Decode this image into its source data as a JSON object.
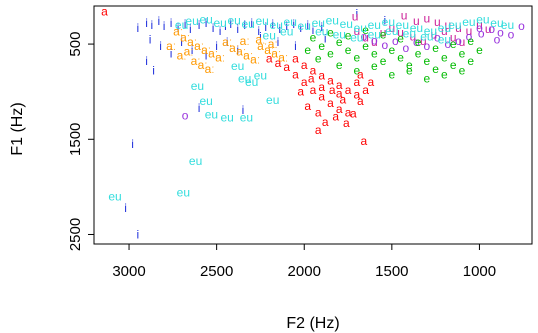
{
  "chart_data": {
    "type": "scatter",
    "title": "",
    "xlabel": "F2 (Hz)",
    "ylabel": "F1 (Hz)",
    "x_reversed": true,
    "y_reversed": true,
    "xlim": [
      3200,
      700
    ],
    "ylim": [
      100,
      2600
    ],
    "x_ticks": [
      3000,
      2500,
      2000,
      1500,
      1000
    ],
    "y_ticks": [
      500,
      1500,
      2500
    ],
    "grid": false,
    "legend": "none",
    "series": [
      {
        "name": "i",
        "color": "#2233dd",
        "points": [
          [
            2950,
            330
          ],
          [
            2900,
            280
          ],
          [
            2870,
            300
          ],
          [
            2830,
            260
          ],
          [
            2800,
            310
          ],
          [
            2760,
            280
          ],
          [
            2720,
            330
          ],
          [
            2680,
            290
          ],
          [
            2650,
            340
          ],
          [
            2600,
            300
          ],
          [
            2560,
            280
          ],
          [
            2520,
            330
          ],
          [
            2480,
            360
          ],
          [
            2450,
            310
          ],
          [
            2420,
            290
          ],
          [
            2380,
            340
          ],
          [
            2340,
            300
          ],
          [
            2300,
            280
          ],
          [
            2260,
            360
          ],
          [
            2220,
            320
          ],
          [
            2180,
            290
          ],
          [
            2140,
            340
          ],
          [
            2100,
            310
          ],
          [
            2060,
            290
          ],
          [
            2020,
            330
          ],
          [
            1980,
            300
          ],
          [
            1950,
            350
          ],
          [
            1900,
            320
          ],
          [
            2880,
            450
          ],
          [
            2820,
            520
          ],
          [
            2760,
            600
          ],
          [
            2700,
            480
          ],
          [
            2640,
            560
          ],
          [
            2560,
            620
          ],
          [
            2500,
            520
          ],
          [
            2440,
            480
          ],
          [
            2380,
            560
          ],
          [
            2900,
            680
          ],
          [
            2860,
            780
          ],
          [
            2600,
            1170
          ],
          [
            2350,
            1190
          ],
          [
            2980,
            1550
          ],
          [
            3020,
            2220
          ],
          [
            2950,
            2500
          ],
          [
            1540,
            250
          ],
          [
            1700,
            180
          ],
          [
            2250,
            420
          ],
          [
            2150,
            480
          ],
          [
            2050,
            520
          ],
          [
            1880,
            440
          ]
        ]
      },
      {
        "name": "u",
        "color": "#cc2299",
        "points": [
          [
            1710,
            210
          ],
          [
            1430,
            200
          ],
          [
            1360,
            260
          ],
          [
            1300,
            230
          ],
          [
            1240,
            270
          ],
          [
            1180,
            300
          ],
          [
            1120,
            330
          ],
          [
            1060,
            360
          ],
          [
            1000,
            300
          ],
          [
            950,
            340
          ],
          [
            1500,
            330
          ],
          [
            1450,
            380
          ],
          [
            1380,
            420
          ],
          [
            1320,
            470
          ],
          [
            1260,
            400
          ],
          [
            1200,
            360
          ],
          [
            1150,
            430
          ],
          [
            1100,
            480
          ],
          [
            1650,
            430
          ],
          [
            1600,
            480
          ],
          [
            1550,
            380
          ],
          [
            1700,
            360
          ]
        ]
      },
      {
        "name": "o",
        "color": "#9933dd",
        "points": [
          [
            2680,
            1250
          ],
          [
            1000,
            330
          ],
          [
            930,
            340
          ],
          [
            880,
            380
          ],
          [
            820,
            400
          ],
          [
            760,
            310
          ],
          [
            1060,
            420
          ],
          [
            1120,
            470
          ],
          [
            1180,
            500
          ],
          [
            1240,
            430
          ],
          [
            1300,
            520
          ],
          [
            1360,
            480
          ],
          [
            1420,
            540
          ],
          [
            1480,
            470
          ],
          [
            1540,
            510
          ],
          [
            1600,
            460
          ],
          [
            1660,
            420
          ],
          [
            990,
            390
          ],
          [
            900,
            450
          ]
        ]
      },
      {
        "name": "e",
        "color": "#00bb00",
        "points": [
          [
            1950,
            430
          ],
          [
            1900,
            520
          ],
          [
            1850,
            600
          ],
          [
            1800,
            480
          ],
          [
            1750,
            560
          ],
          [
            1700,
            640
          ],
          [
            1650,
            520
          ],
          [
            1600,
            600
          ],
          [
            1550,
            680
          ],
          [
            1500,
            560
          ],
          [
            1450,
            640
          ],
          [
            1400,
            720
          ],
          [
            1350,
            600
          ],
          [
            1300,
            680
          ],
          [
            1250,
            760
          ],
          [
            1200,
            640
          ],
          [
            1150,
            720
          ],
          [
            1100,
            600
          ],
          [
            1050,
            680
          ],
          [
            1000,
            560
          ],
          [
            1800,
            720
          ],
          [
            1700,
            780
          ],
          [
            1600,
            730
          ],
          [
            1500,
            820
          ],
          [
            1400,
            780
          ],
          [
            1300,
            860
          ],
          [
            1200,
            820
          ],
          [
            1100,
            780
          ],
          [
            1850,
            380
          ],
          [
            1750,
            410
          ],
          [
            1650,
            350
          ],
          [
            1550,
            400
          ],
          [
            1450,
            440
          ],
          [
            1350,
            480
          ],
          [
            1250,
            540
          ],
          [
            1150,
            500
          ],
          [
            1050,
            470
          ],
          [
            1920,
            650
          ],
          [
            1980,
            560
          ]
        ]
      },
      {
        "name": "a",
        "color": "#ff0000",
        "points": [
          [
            3140,
            160
          ],
          [
            2050,
            650
          ],
          [
            2000,
            720
          ],
          [
            1950,
            780
          ],
          [
            1900,
            830
          ],
          [
            1850,
            880
          ],
          [
            1800,
            930
          ],
          [
            1750,
            980
          ],
          [
            1700,
            1030
          ],
          [
            2000,
            900
          ],
          [
            1950,
            980
          ],
          [
            1900,
            1050
          ],
          [
            1850,
            1120
          ],
          [
            1800,
            1180
          ],
          [
            1750,
            1220
          ],
          [
            2050,
            820
          ],
          [
            2100,
            740
          ],
          [
            1980,
            1150
          ],
          [
            1920,
            1220
          ],
          [
            1880,
            1320
          ],
          [
            1820,
            1260
          ],
          [
            1760,
            1330
          ],
          [
            1720,
            1230
          ],
          [
            1680,
            1100
          ],
          [
            1650,
            980
          ],
          [
            1700,
            900
          ],
          [
            1800,
            1020
          ],
          [
            1900,
            950
          ],
          [
            2150,
            700
          ],
          [
            2200,
            650
          ],
          [
            1920,
            1400
          ],
          [
            1660,
            1520
          ],
          [
            1780,
            1080
          ],
          [
            1840,
            980
          ],
          [
            1960,
            860
          ],
          [
            2020,
            1000
          ],
          [
            1680,
            820
          ],
          [
            1620,
            900
          ]
        ]
      },
      {
        "name": "aː",
        "color": "#ff9900",
        "points": [
          [
            2720,
            370
          ],
          [
            2680,
            430
          ],
          [
            2640,
            480
          ],
          [
            2600,
            520
          ],
          [
            2560,
            560
          ],
          [
            2520,
            600
          ],
          [
            2480,
            640
          ],
          [
            2440,
            480
          ],
          [
            2400,
            540
          ],
          [
            2360,
            580
          ],
          [
            2320,
            620
          ],
          [
            2280,
            660
          ],
          [
            2240,
            520
          ],
          [
            2200,
            560
          ],
          [
            2160,
            600
          ],
          [
            2120,
            640
          ],
          [
            2620,
            680
          ],
          [
            2580,
            720
          ],
          [
            2540,
            760
          ],
          [
            2660,
            580
          ],
          [
            2700,
            620
          ],
          [
            2760,
            520
          ],
          [
            2340,
            470
          ],
          [
            2250,
            450
          ],
          [
            2180,
            500
          ]
        ]
      },
      {
        "name": "eu",
        "color": "#33dddd",
        "points": [
          [
            3080,
            2100
          ],
          [
            2690,
            2060
          ],
          [
            2610,
            940
          ],
          [
            2560,
            1100
          ],
          [
            2530,
            1240
          ],
          [
            2440,
            1270
          ],
          [
            2330,
            1270
          ],
          [
            2180,
            1090
          ],
          [
            2620,
            1730
          ],
          [
            2380,
            730
          ],
          [
            2340,
            860
          ],
          [
            2300,
            900
          ],
          [
            2250,
            830
          ],
          [
            2700,
            300
          ],
          [
            2640,
            260
          ],
          [
            2560,
            240
          ],
          [
            2480,
            280
          ],
          [
            2400,
            250
          ],
          [
            2320,
            290
          ],
          [
            2240,
            260
          ],
          [
            2160,
            300
          ],
          [
            2080,
            270
          ],
          [
            2000,
            310
          ],
          [
            1920,
            280
          ],
          [
            1840,
            250
          ],
          [
            1760,
            290
          ],
          [
            1680,
            330
          ],
          [
            1600,
            300
          ],
          [
            1520,
            270
          ],
          [
            1440,
            300
          ],
          [
            1360,
            330
          ],
          [
            1280,
            360
          ],
          [
            1200,
            330
          ],
          [
            1140,
            300
          ],
          [
            1060,
            270
          ],
          [
            980,
            240
          ],
          [
            900,
            280
          ],
          [
            840,
            300
          ],
          [
            1900,
            370
          ],
          [
            1800,
            400
          ],
          [
            1700,
            430
          ],
          [
            1600,
            400
          ],
          [
            1500,
            360
          ],
          [
            1400,
            390
          ],
          [
            1300,
            420
          ],
          [
            1200,
            450
          ],
          [
            2100,
            370
          ],
          [
            2200,
            410
          ]
        ]
      }
    ]
  }
}
